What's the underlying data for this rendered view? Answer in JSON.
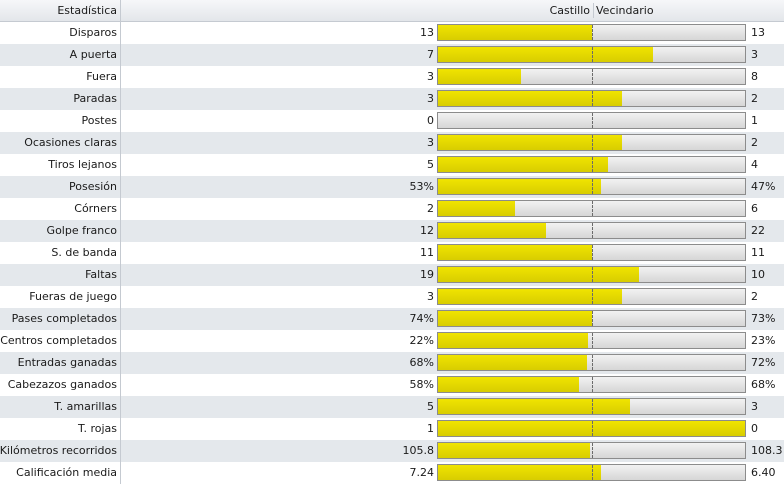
{
  "header": {
    "stat_label": "Estadística",
    "home_team": "Castillo",
    "away_team": "Vecindario"
  },
  "colors": {
    "home_bar": "#e8dc00",
    "away_bar": "#e0e0e0",
    "row_alt": "#e4e8ec"
  },
  "stats": [
    {
      "label": "Disparos",
      "home": "13",
      "away": "13",
      "home_share": 0.5
    },
    {
      "label": "A puerta",
      "home": "7",
      "away": "3",
      "home_share": 0.7
    },
    {
      "label": "Fuera",
      "home": "3",
      "away": "8",
      "home_share": 0.27
    },
    {
      "label": "Paradas",
      "home": "3",
      "away": "2",
      "home_share": 0.6
    },
    {
      "label": "Postes",
      "home": "0",
      "away": "1",
      "home_share": 0.0
    },
    {
      "label": "Ocasiones claras",
      "home": "3",
      "away": "2",
      "home_share": 0.6
    },
    {
      "label": "Tiros lejanos",
      "home": "5",
      "away": "4",
      "home_share": 0.555
    },
    {
      "label": "Posesión",
      "home": "53%",
      "away": "47%",
      "home_share": 0.53
    },
    {
      "label": "Córners",
      "home": "2",
      "away": "6",
      "home_share": 0.25
    },
    {
      "label": "Golpe franco",
      "home": "12",
      "away": "22",
      "home_share": 0.353
    },
    {
      "label": "S. de banda",
      "home": "11",
      "away": "11",
      "home_share": 0.5
    },
    {
      "label": "Faltas",
      "home": "19",
      "away": "10",
      "home_share": 0.655
    },
    {
      "label": "Fueras de juego",
      "home": "3",
      "away": "2",
      "home_share": 0.6
    },
    {
      "label": "Pases completados",
      "home": "74%",
      "away": "73%",
      "home_share": 0.503
    },
    {
      "label": "Centros completados",
      "home": "22%",
      "away": "23%",
      "home_share": 0.489
    },
    {
      "label": "Entradas ganadas",
      "home": "68%",
      "away": "72%",
      "home_share": 0.486
    },
    {
      "label": "Cabezazos ganados",
      "home": "58%",
      "away": "68%",
      "home_share": 0.46
    },
    {
      "label": "T. amarillas",
      "home": "5",
      "away": "3",
      "home_share": 0.625
    },
    {
      "label": "T. rojas",
      "home": "1",
      "away": "0",
      "home_share": 1.0
    },
    {
      "label": "Kilómetros recorridos",
      "home": "105.8",
      "away": "108.3",
      "home_share": 0.494
    },
    {
      "label": "Calificación media",
      "home": "7.24",
      "away": "6.40",
      "home_share": 0.531
    }
  ]
}
